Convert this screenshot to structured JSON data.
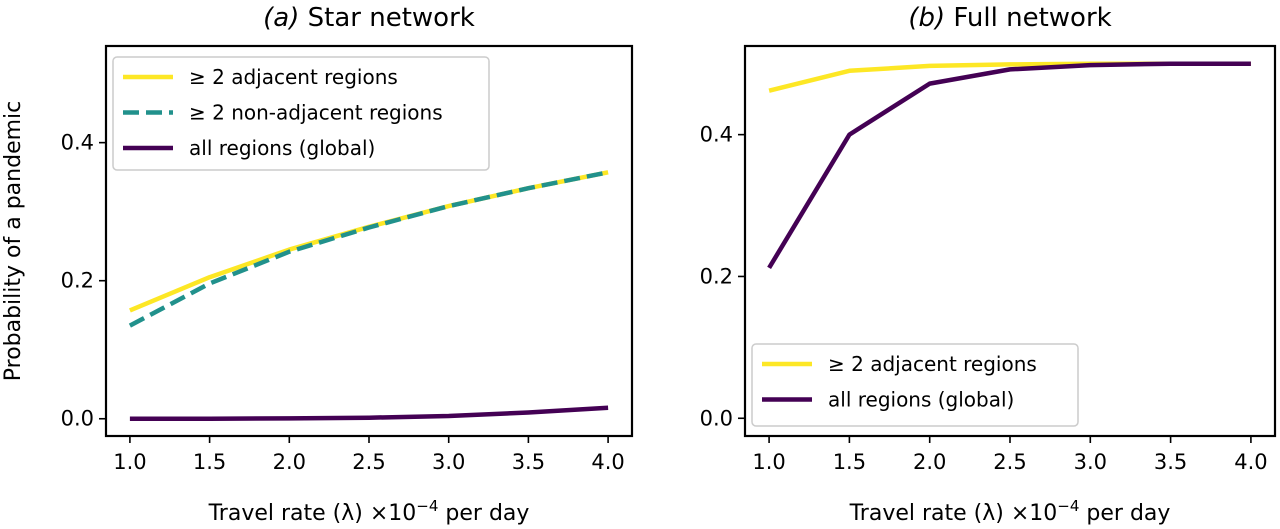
{
  "ylabel": "Probability of a pandemic",
  "chart_data": [
    {
      "type": "line",
      "title_prefix": "(a)",
      "title": "Star network",
      "xlabel": "Travel rate (λ) ×10",
      "xlabel_exponent": "−4",
      "xlabel_suffix": " per day",
      "ylabel": "Probability of a pandemic",
      "xlim": [
        0.85,
        4.15
      ],
      "ylim": [
        -0.025,
        0.54
      ],
      "xticks": [
        "1.0",
        "1.5",
        "2.0",
        "2.5",
        "3.0",
        "3.5",
        "4.0"
      ],
      "yticks": [
        "0.0",
        "0.2",
        "0.4"
      ],
      "x": [
        1.0,
        1.5,
        2.0,
        2.5,
        3.0,
        3.5,
        4.0
      ],
      "legend_position": "upper-left",
      "series": [
        {
          "name": "≥ 2 adjacent regions",
          "values": [
            0.157,
            0.205,
            0.245,
            0.278,
            0.308,
            0.334,
            0.357
          ],
          "color": "#fde725",
          "dash": "solid"
        },
        {
          "name": "≥ 2 non-adjacent regions",
          "values": [
            0.135,
            0.196,
            0.242,
            0.277,
            0.308,
            0.334,
            0.357
          ],
          "color": "#21918c",
          "dash": "dashed"
        },
        {
          "name": "all regions (global)",
          "values": [
            0.0,
            0.0,
            0.0005,
            0.0015,
            0.004,
            0.009,
            0.016
          ],
          "color": "#440154",
          "dash": "solid"
        }
      ]
    },
    {
      "type": "line",
      "title_prefix": "(b)",
      "title": "Full network",
      "xlabel": "Travel rate (λ) ×10",
      "xlabel_exponent": "−4",
      "xlabel_suffix": " per day",
      "xlim": [
        0.85,
        4.15
      ],
      "ylim": [
        -0.025,
        0.525
      ],
      "xticks": [
        "1.0",
        "1.5",
        "2.0",
        "2.5",
        "3.0",
        "3.5",
        "4.0"
      ],
      "yticks": [
        "0.0",
        "0.2",
        "0.4"
      ],
      "x": [
        1.0,
        1.5,
        2.0,
        2.5,
        3.0,
        3.5,
        4.0
      ],
      "legend_position": "lower-left",
      "series": [
        {
          "name": "≥ 2 adjacent regions",
          "values": [
            0.462,
            0.49,
            0.497,
            0.499,
            0.5,
            0.5,
            0.5
          ],
          "color": "#fde725",
          "dash": "solid"
        },
        {
          "name": "all regions (global)",
          "values": [
            0.212,
            0.4,
            0.472,
            0.492,
            0.498,
            0.5,
            0.5
          ],
          "color": "#440154",
          "dash": "solid"
        }
      ]
    }
  ]
}
